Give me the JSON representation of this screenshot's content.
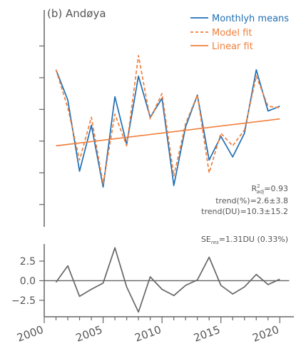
{
  "colors": {
    "monthly": "#1f6fb4",
    "model": "#f07f3c",
    "linear": "#f07f3c",
    "residual": "#666666",
    "axis": "#666666",
    "text": "#555555"
  },
  "chart_data": [
    {
      "type": "line",
      "title": "(b) Andøya",
      "x": [
        2001,
        2002,
        2003,
        2004,
        2005,
        2006,
        2007,
        2008,
        2009,
        2010,
        2011,
        2012,
        2013,
        2014,
        2015,
        2016,
        2017,
        2018,
        2019,
        2020
      ],
      "series": [
        {
          "name": "Monthlyh means",
          "style": "solid",
          "values": [
            365,
            346,
            301,
            330,
            291,
            348,
            318,
            361,
            335,
            347,
            292,
            329,
            349,
            308,
            323,
            310,
            325,
            365,
            339,
            342
          ]
        },
        {
          "name": "Model fit",
          "style": "dashed",
          "values": [
            365,
            341,
            308,
            335,
            293,
            337,
            317,
            374,
            334,
            350,
            298,
            331,
            349,
            300,
            325,
            317,
            327,
            361,
            342,
            341
          ]
        },
        {
          "name": "Linear fit",
          "style": "solid",
          "x": [
            2001,
            2020
          ],
          "values": [
            317,
            334
          ]
        }
      ],
      "legend": {
        "position": "top-right",
        "entries": [
          "Monthlyh means",
          "Model fit",
          "Linear fit"
        ]
      },
      "ylim": [
        265,
        400
      ],
      "xlim": [
        2000,
        2020.8
      ],
      "annotations": {
        "r2_prefix": "R",
        "r2_sup": "2",
        "r2_sub": "adj",
        "r2_value": "=0.93",
        "trend_percent": "trend(%)=2.6±3.8",
        "trend_du": "trend(DU)=10.3±15.2"
      }
    },
    {
      "type": "line",
      "x": [
        2001,
        2002,
        2003,
        2004,
        2005,
        2006,
        2007,
        2008,
        2009,
        2010,
        2011,
        2012,
        2013,
        2014,
        2015,
        2016,
        2017,
        2018,
        2019,
        2020
      ],
      "series": [
        {
          "name": "",
          "values": [
            -0.2,
            1.9,
            -2.0,
            -1.1,
            -0.3,
            4.2,
            -0.8,
            -4.0,
            0.5,
            -1.1,
            -1.9,
            -0.6,
            0.1,
            3.0,
            -0.6,
            -1.7,
            -0.8,
            0.8,
            -0.5,
            0.2
          ]
        }
      ],
      "zero_line": true,
      "ylim": [
        -4.6,
        4.5
      ],
      "yticks": [
        2.5,
        0.0,
        -2.5
      ],
      "ytick_labels": [
        "2.5",
        "0.0",
        "−2.5"
      ],
      "xticks": [
        2000,
        2005,
        2010,
        2015,
        2020
      ],
      "xtick_labels": [
        "2000",
        "2005",
        "2010",
        "2015",
        "2020"
      ],
      "annotation": {
        "prefix": "SE",
        "sub": "res",
        "suffix": "=1.31DU (0.33%)"
      }
    }
  ]
}
